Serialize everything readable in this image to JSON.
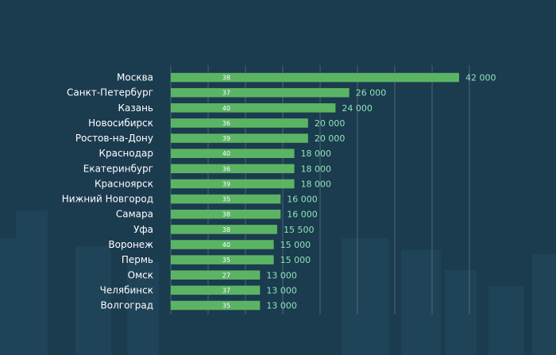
{
  "colors": {
    "background": "#1b3b4f",
    "bar": "#5bb464",
    "value_label": "#8fe3b6",
    "category_label": "#ffffff",
    "grid": "#8a9ba6"
  },
  "chart_data": {
    "type": "bar",
    "orientation": "horizontal",
    "title": "",
    "xlabel": "",
    "ylabel": "",
    "xlim": [
      0,
      42000
    ],
    "grid": true,
    "categories": [
      "Москва",
      "Санкт-Петербург",
      "Казань",
      "Новосибирск",
      "Ростов-на-Дону",
      "Краснодар",
      "Екатеринбург",
      "Красноярск",
      "Нижний Новгород",
      "Самара",
      "Уфа",
      "Воронеж",
      "Пермь",
      "Омск",
      "Челябинск",
      "Волгоград"
    ],
    "values": [
      42000,
      26000,
      24000,
      20000,
      20000,
      18000,
      18000,
      18000,
      16000,
      16000,
      15500,
      15000,
      15000,
      13000,
      13000,
      13000
    ],
    "value_labels": [
      "42 000",
      "26 000",
      "24 000",
      "20 000",
      "20 000",
      "18 000",
      "18 000",
      "18 000",
      "16 000",
      "16 000",
      "15 500",
      "15 000",
      "15 000",
      "13 000",
      "13 000",
      "13 000"
    ],
    "inner_labels": [
      "38",
      "37",
      "40",
      "36",
      "39",
      "40",
      "36",
      "39",
      "35",
      "38",
      "38",
      "40",
      "35",
      "27",
      "37",
      "35"
    ]
  }
}
